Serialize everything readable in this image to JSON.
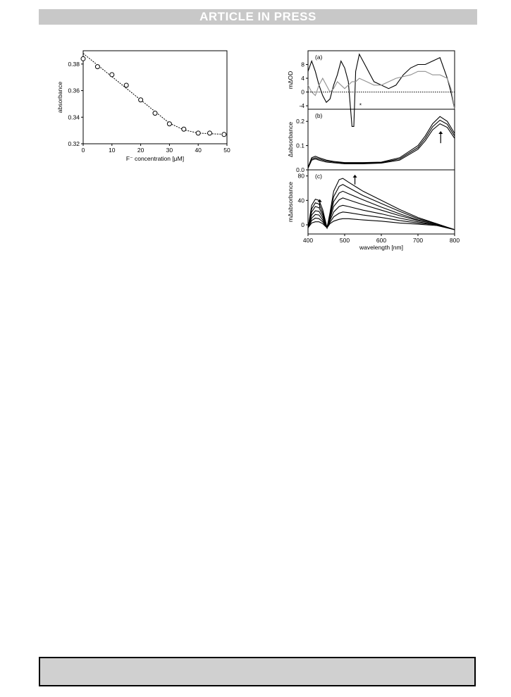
{
  "header": {
    "banner": "ARTICLE IN PRESS"
  },
  "chart_data": [
    {
      "type": "scatter",
      "ylabel": "absorbance",
      "xlabel": "F⁻ concentration [μM]",
      "xlim": [
        0,
        50
      ],
      "ylim": [
        0.32,
        0.39
      ],
      "xticks": [
        "0",
        "10",
        "20",
        "30",
        "40",
        "50"
      ],
      "yticks": [
        "0.32",
        "0.34",
        "0.36",
        "0.38"
      ],
      "series": [
        {
          "x": [
            0,
            5,
            10,
            15,
            20,
            25,
            30,
            35,
            40,
            44,
            49
          ],
          "y": [
            0.384,
            0.378,
            0.372,
            0.364,
            0.353,
            0.343,
            0.335,
            0.331,
            0.328,
            0.328,
            0.327
          ]
        }
      ],
      "fit_line": {
        "x": [
          0,
          30,
          35,
          40,
          50
        ],
        "y": [
          0.388,
          0.3355,
          0.3305,
          0.328,
          0.327
        ]
      }
    },
    {
      "type": "line",
      "panel": "(a)",
      "ylabel": "mΔOD",
      "xlim": [
        400,
        800
      ],
      "ylim": [
        -5,
        12
      ],
      "yticks": [
        "-4",
        "0",
        "4",
        "8"
      ],
      "annotation": "*",
      "series": [
        {
          "color": "#000000",
          "x": [
            400,
            410,
            420,
            430,
            440,
            450,
            460,
            470,
            480,
            490,
            500,
            510,
            520,
            525,
            530,
            540,
            550,
            560,
            570,
            580,
            600,
            620,
            640,
            660,
            680,
            700,
            720,
            740,
            760,
            780,
            790,
            800
          ],
          "y": [
            6,
            9,
            6,
            2,
            -1,
            -3,
            -2,
            2,
            5,
            9,
            7,
            3,
            -10,
            -10,
            6,
            11,
            9,
            7,
            5,
            3,
            2,
            1,
            2,
            5,
            7,
            8,
            8,
            9,
            10,
            4,
            0,
            -5
          ]
        },
        {
          "color": "#909090",
          "x": [
            400,
            410,
            420,
            430,
            440,
            450,
            460,
            470,
            480,
            490,
            500,
            510,
            520,
            530,
            540,
            560,
            580,
            600,
            640,
            680,
            700,
            720,
            740,
            760,
            780,
            790,
            800
          ],
          "y": [
            2,
            0,
            -1,
            2,
            4,
            2,
            0,
            1,
            3,
            2,
            1,
            2,
            3,
            3,
            4,
            3,
            2,
            2,
            4,
            5,
            6,
            6,
            5,
            5,
            4,
            1,
            -5
          ]
        }
      ]
    },
    {
      "type": "line",
      "panel": "(b)",
      "ylabel": "Δabsorbance",
      "xlim": [
        400,
        800
      ],
      "ylim": [
        0,
        0.25
      ],
      "yticks": [
        "0.0",
        "0.1",
        "0.2"
      ],
      "series": [
        {
          "x": [
            400,
            410,
            420,
            430,
            450,
            470,
            500,
            550,
            600,
            650,
            700,
            720,
            740,
            760,
            780,
            800
          ],
          "y": [
            0.01,
            0.05,
            0.056,
            0.05,
            0.04,
            0.035,
            0.03,
            0.03,
            0.032,
            0.05,
            0.1,
            0.14,
            0.19,
            0.22,
            0.2,
            0.15
          ]
        },
        {
          "x": [
            400,
            410,
            420,
            430,
            450,
            470,
            500,
            550,
            600,
            650,
            700,
            720,
            740,
            760,
            780,
            800
          ],
          "y": [
            0.008,
            0.045,
            0.05,
            0.045,
            0.036,
            0.032,
            0.028,
            0.028,
            0.03,
            0.045,
            0.092,
            0.13,
            0.178,
            0.205,
            0.188,
            0.14
          ]
        },
        {
          "x": [
            400,
            410,
            420,
            430,
            450,
            470,
            500,
            550,
            600,
            650,
            700,
            720,
            740,
            760,
            780,
            800
          ],
          "y": [
            0.006,
            0.04,
            0.045,
            0.04,
            0.032,
            0.029,
            0.025,
            0.025,
            0.028,
            0.04,
            0.085,
            0.12,
            0.165,
            0.19,
            0.175,
            0.13
          ]
        }
      ]
    },
    {
      "type": "line",
      "panel": "(c)",
      "ylabel": "mΔabsorbance",
      "xlabel": "wavelength [nm]",
      "xlim": [
        400,
        800
      ],
      "ylim": [
        -15,
        90
      ],
      "yticks": [
        "0",
        "40",
        "80"
      ],
      "xticks": [
        "400",
        "500",
        "600",
        "700",
        "800"
      ],
      "series": [
        {
          "x": [
            400,
            410,
            420,
            430,
            440,
            452,
            460,
            470,
            485,
            495,
            510,
            550,
            600,
            650,
            700,
            750,
            800
          ],
          "y": [
            -5,
            32,
            42,
            40,
            25,
            -5,
            20,
            55,
            74,
            76,
            70,
            55,
            40,
            25,
            12,
            2,
            -8
          ]
        },
        {
          "x": [
            400,
            410,
            420,
            430,
            440,
            452,
            460,
            470,
            485,
            495,
            510,
            550,
            600,
            650,
            700,
            750,
            800
          ],
          "y": [
            -5,
            26,
            36,
            34,
            20,
            -5,
            16,
            46,
            63,
            66,
            61,
            48,
            35,
            22,
            10,
            2,
            -8
          ]
        },
        {
          "x": [
            400,
            410,
            420,
            430,
            440,
            452,
            460,
            470,
            485,
            495,
            510,
            550,
            600,
            650,
            700,
            750,
            800
          ],
          "y": [
            -5,
            21,
            30,
            28,
            16,
            -5,
            13,
            38,
            52,
            55,
            51,
            41,
            29,
            18,
            8,
            1,
            -8
          ]
        },
        {
          "x": [
            400,
            410,
            420,
            430,
            440,
            452,
            460,
            470,
            485,
            495,
            510,
            550,
            600,
            650,
            700,
            750,
            800
          ],
          "y": [
            -5,
            16,
            23,
            22,
            12,
            -5,
            10,
            30,
            41,
            44,
            41,
            33,
            24,
            15,
            7,
            1,
            -8
          ]
        },
        {
          "x": [
            400,
            410,
            420,
            430,
            440,
            452,
            460,
            470,
            485,
            495,
            510,
            550,
            600,
            650,
            700,
            750,
            800
          ],
          "y": [
            -5,
            11,
            17,
            16,
            8,
            -5,
            7,
            21,
            30,
            32,
            30,
            24,
            18,
            11,
            5,
            0,
            -8
          ]
        },
        {
          "x": [
            400,
            410,
            420,
            430,
            440,
            452,
            460,
            470,
            485,
            495,
            510,
            550,
            600,
            650,
            700,
            750,
            800
          ],
          "y": [
            -5,
            7,
            11,
            10,
            5,
            -5,
            4,
            13,
            19,
            21,
            20,
            16,
            12,
            7,
            3,
            0,
            -8
          ]
        },
        {
          "x": [
            400,
            410,
            420,
            430,
            440,
            452,
            460,
            470,
            485,
            495,
            510,
            550,
            600,
            650,
            700,
            750,
            800
          ],
          "y": [
            -5,
            3,
            5,
            5,
            2,
            -5,
            2,
            6,
            9,
            10,
            10,
            8,
            6,
            3,
            1,
            -1,
            -8
          ]
        }
      ]
    }
  ]
}
